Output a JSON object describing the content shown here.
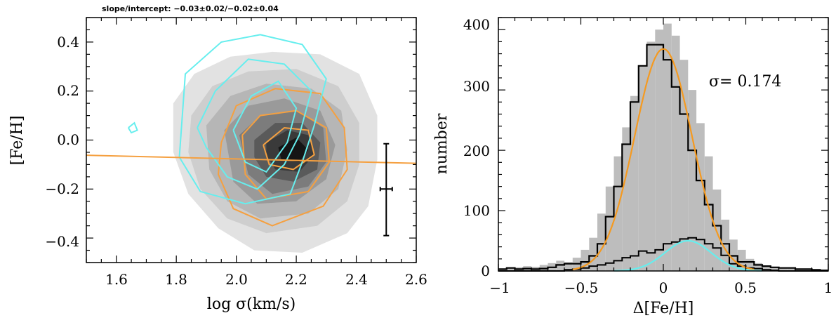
{
  "chart_data": [
    {
      "type": "scatter",
      "title": "slope/intercept: −0.03±0.02/−0.02±0.04",
      "xlabel": "log σ(km/s)",
      "ylabel": "[Fe/H]",
      "xlim": [
        1.5,
        2.6
      ],
      "ylim": [
        -0.5,
        0.5
      ],
      "xticks": [
        1.6,
        1.8,
        2.0,
        2.2,
        2.4,
        2.6
      ],
      "xtick_labels": [
        "1.6",
        "1.8",
        "2.0",
        "2.2",
        "2.4",
        "2.6"
      ],
      "yticks": [
        -0.4,
        -0.2,
        0.0,
        0.2,
        0.4
      ],
      "ytick_labels": [
        "−0.4",
        "−0.2",
        "0.0",
        "0.2",
        "0.4"
      ],
      "colors": {
        "cyan": "#66eeee",
        "orange": "#f5a040"
      },
      "filled_density": [
        {
          "fill": "#e2e2e2",
          "points": [
            [
              1.79,
              0.15
            ],
            [
              1.86,
              0.27
            ],
            [
              1.98,
              0.34
            ],
            [
              2.12,
              0.36
            ],
            [
              2.28,
              0.35
            ],
            [
              2.41,
              0.27
            ],
            [
              2.47,
              0.1
            ],
            [
              2.47,
              -0.08
            ],
            [
              2.44,
              -0.27
            ],
            [
              2.37,
              -0.38
            ],
            [
              2.22,
              -0.46
            ],
            [
              2.06,
              -0.45
            ],
            [
              1.94,
              -0.36
            ],
            [
              1.84,
              -0.22
            ],
            [
              1.79,
              -0.05
            ]
          ]
        },
        {
          "fill": "#cecece",
          "points": [
            [
              1.85,
              0.1
            ],
            [
              1.92,
              0.22
            ],
            [
              2.04,
              0.28
            ],
            [
              2.2,
              0.29
            ],
            [
              2.34,
              0.22
            ],
            [
              2.41,
              0.07
            ],
            [
              2.41,
              -0.1
            ],
            [
              2.37,
              -0.25
            ],
            [
              2.27,
              -0.35
            ],
            [
              2.1,
              -0.38
            ],
            [
              1.97,
              -0.32
            ],
            [
              1.88,
              -0.2
            ],
            [
              1.84,
              -0.05
            ]
          ]
        },
        {
          "fill": "#b6b6b6",
          "points": [
            [
              1.9,
              0.06
            ],
            [
              1.98,
              0.18
            ],
            [
              2.1,
              0.23
            ],
            [
              2.25,
              0.21
            ],
            [
              2.35,
              0.12
            ],
            [
              2.37,
              -0.04
            ],
            [
              2.34,
              -0.2
            ],
            [
              2.24,
              -0.3
            ],
            [
              2.08,
              -0.32
            ],
            [
              1.97,
              -0.25
            ],
            [
              1.91,
              -0.12
            ]
          ]
        },
        {
          "fill": "#9a9a9a",
          "points": [
            [
              1.96,
              0.04
            ],
            [
              2.04,
              0.14
            ],
            [
              2.16,
              0.17
            ],
            [
              2.28,
              0.12
            ],
            [
              2.33,
              -0.02
            ],
            [
              2.3,
              -0.16
            ],
            [
              2.2,
              -0.25
            ],
            [
              2.07,
              -0.26
            ],
            [
              1.99,
              -0.17
            ]
          ]
        },
        {
          "fill": "#7c7c7c",
          "points": [
            [
              2.01,
              0.02
            ],
            [
              2.08,
              0.1
            ],
            [
              2.2,
              0.12
            ],
            [
              2.29,
              0.05
            ],
            [
              2.3,
              -0.09
            ],
            [
              2.24,
              -0.19
            ],
            [
              2.12,
              -0.22
            ],
            [
              2.04,
              -0.14
            ]
          ]
        },
        {
          "fill": "#5a5a5a",
          "points": [
            [
              2.06,
              0.0
            ],
            [
              2.13,
              0.07
            ],
            [
              2.22,
              0.07
            ],
            [
              2.28,
              -0.01
            ],
            [
              2.27,
              -0.12
            ],
            [
              2.19,
              -0.17
            ],
            [
              2.1,
              -0.15
            ],
            [
              2.06,
              -0.07
            ]
          ]
        },
        {
          "fill": "#3a3a3a",
          "points": [
            [
              2.1,
              -0.01
            ],
            [
              2.17,
              0.04
            ],
            [
              2.24,
              0.02
            ],
            [
              2.26,
              -0.06
            ],
            [
              2.21,
              -0.13
            ],
            [
              2.13,
              -0.12
            ],
            [
              2.1,
              -0.06
            ]
          ]
        },
        {
          "fill": "#151515",
          "points": [
            [
              2.14,
              -0.03
            ],
            [
              2.2,
              0.01
            ],
            [
              2.24,
              -0.04
            ],
            [
              2.21,
              -0.09
            ],
            [
              2.15,
              -0.08
            ]
          ]
        }
      ],
      "orange_contours": [
        [
          [
            1.95,
            -0.01
          ],
          [
            2.0,
            0.14
          ],
          [
            2.13,
            0.21
          ],
          [
            2.28,
            0.19
          ],
          [
            2.36,
            0.05
          ],
          [
            2.37,
            -0.12
          ],
          [
            2.29,
            -0.27
          ],
          [
            2.12,
            -0.35
          ],
          [
            1.99,
            -0.28
          ],
          [
            1.94,
            -0.14
          ],
          [
            1.95,
            -0.01
          ]
        ],
        [
          [
            2.02,
            0.02
          ],
          [
            2.08,
            0.1
          ],
          [
            2.2,
            0.12
          ],
          [
            2.3,
            0.05
          ],
          [
            2.31,
            -0.09
          ],
          [
            2.24,
            -0.21
          ],
          [
            2.1,
            -0.24
          ],
          [
            2.03,
            -0.14
          ],
          [
            2.02,
            0.02
          ]
        ],
        [
          [
            2.09,
            -0.02
          ],
          [
            2.16,
            0.05
          ],
          [
            2.24,
            0.04
          ],
          [
            2.26,
            -0.06
          ],
          [
            2.19,
            -0.12
          ],
          [
            2.11,
            -0.1
          ],
          [
            2.09,
            -0.02
          ]
        ]
      ],
      "cyan_contours": [
        [
          [
            1.81,
            -0.07
          ],
          [
            1.83,
            0.27
          ],
          [
            1.95,
            0.4
          ],
          [
            2.08,
            0.43
          ],
          [
            2.22,
            0.39
          ],
          [
            2.3,
            0.25
          ],
          [
            2.26,
            0.06
          ],
          [
            2.22,
            -0.09
          ],
          [
            2.18,
            -0.22
          ],
          [
            2.03,
            -0.26
          ],
          [
            1.88,
            -0.21
          ],
          [
            1.81,
            -0.07
          ]
        ],
        [
          [
            1.87,
            0.05
          ],
          [
            1.93,
            0.2
          ],
          [
            2.04,
            0.33
          ],
          [
            2.16,
            0.31
          ],
          [
            2.25,
            0.2
          ],
          [
            2.21,
            0.02
          ],
          [
            2.16,
            -0.1
          ],
          [
            2.07,
            -0.2
          ],
          [
            1.97,
            -0.15
          ],
          [
            1.9,
            -0.03
          ],
          [
            1.87,
            0.05
          ]
        ],
        [
          [
            1.99,
            0.04
          ],
          [
            2.05,
            0.18
          ],
          [
            2.14,
            0.24
          ],
          [
            2.2,
            0.13
          ],
          [
            2.17,
            -0.01
          ],
          [
            2.1,
            -0.13
          ],
          [
            2.03,
            -0.09
          ],
          [
            1.99,
            0.04
          ]
        ],
        [
          [
            1.64,
            0.05
          ],
          [
            1.66,
            0.07
          ],
          [
            1.67,
            0.04
          ],
          [
            1.65,
            0.03
          ],
          [
            1.64,
            0.05
          ]
        ]
      ],
      "fit_line": {
        "x": [
          1.5,
          2.6
        ],
        "y": [
          -0.062,
          -0.095
        ]
      },
      "error_bar": {
        "x": 2.5,
        "y": -0.2,
        "xerr": 0.02,
        "y_low": -0.39,
        "y_high": -0.015
      }
    },
    {
      "type": "histogram",
      "xlabel": "Δ[Fe/H]",
      "ylabel": "number",
      "annotation": "σ=  0.174",
      "xlim": [
        -1,
        1
      ],
      "ylim": [
        0,
        420
      ],
      "xticks": [
        -1,
        -0.5,
        0,
        0.5,
        1
      ],
      "xtick_labels": [
        "−1",
        "−0.5",
        "0",
        "0.5",
        "1"
      ],
      "yticks": [
        0,
        100,
        200,
        300,
        400
      ],
      "ytick_labels": [
        "0",
        "100",
        "200",
        "300",
        "400"
      ],
      "bin_edges": [
        -1.0,
        -0.95,
        -0.9,
        -0.85,
        -0.8,
        -0.75,
        -0.7,
        -0.65,
        -0.6,
        -0.55,
        -0.5,
        -0.45,
        -0.4,
        -0.35,
        -0.3,
        -0.25,
        -0.2,
        -0.15,
        -0.1,
        -0.05,
        0.0,
        0.05,
        0.1,
        0.15,
        0.2,
        0.25,
        0.3,
        0.35,
        0.4,
        0.45,
        0.5,
        0.55,
        0.6,
        0.65,
        0.7,
        0.75,
        0.8,
        0.85,
        0.9,
        0.95,
        1.0
      ],
      "gray_counts": [
        4,
        5,
        6,
        8,
        7,
        10,
        13,
        17,
        15,
        22,
        35,
        55,
        95,
        140,
        190,
        238,
        290,
        340,
        380,
        400,
        410,
        390,
        350,
        300,
        245,
        190,
        135,
        85,
        52,
        35,
        20,
        13,
        8,
        6,
        4,
        4,
        3,
        2,
        2,
        1
      ],
      "black_counts": [
        3,
        5,
        3,
        4,
        3,
        4,
        6,
        10,
        12,
        12,
        15,
        25,
        45,
        90,
        140,
        210,
        280,
        340,
        375,
        375,
        350,
        305,
        260,
        200,
        150,
        110,
        75,
        45,
        25,
        15,
        15,
        10,
        8,
        6,
        5,
        5,
        3,
        3,
        2,
        1
      ],
      "cyan_counts": [
        0,
        0,
        0,
        0,
        0,
        0,
        0,
        0,
        2,
        3,
        5,
        8,
        10,
        13,
        17,
        22,
        25,
        33,
        30,
        35,
        45,
        48,
        53,
        55,
        52,
        45,
        38,
        26,
        12,
        8,
        5,
        4,
        2,
        1,
        0,
        0,
        0,
        0,
        0,
        0
      ],
      "orange_fit": {
        "amplitude": 368,
        "mean": 0.0,
        "sigma": 0.174
      },
      "cyan_fit": {
        "amplitude": 50,
        "mean": 0.15,
        "sigma": 0.14
      }
    }
  ]
}
